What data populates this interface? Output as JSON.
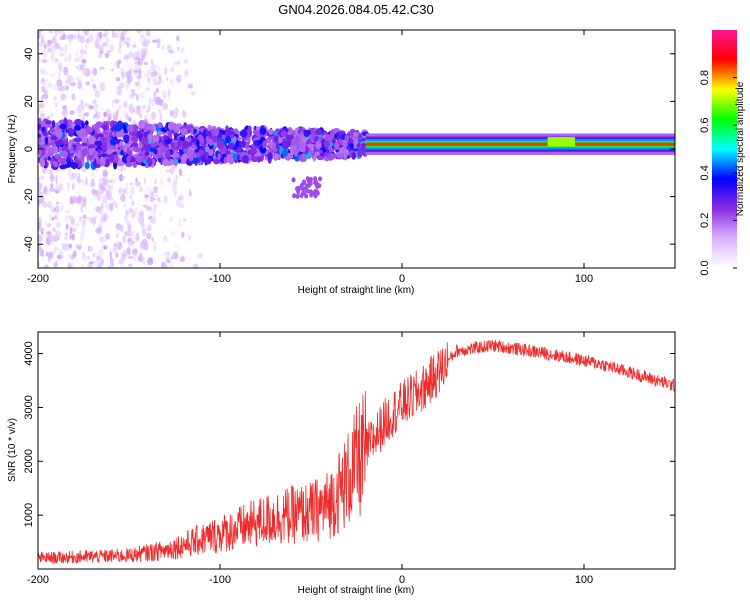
{
  "title": "GN04.2026.084.05.42.C30",
  "chart_data": [
    {
      "type": "heatmap",
      "name": "spectrogram",
      "xlabel": "Height of straight line (km)",
      "ylabel": "Frequency (Hz)",
      "xlim": [
        -200,
        150
      ],
      "ylim": [
        -50,
        50
      ],
      "xticks": [
        -200,
        -100,
        0,
        100
      ],
      "yticks": [
        -40,
        -20,
        0,
        20,
        40
      ],
      "colorbar": {
        "label": "Normalized spectral amplitude",
        "range": [
          0,
          1
        ],
        "ticks": [
          "0.0",
          "0.2",
          "0.4",
          "0.6",
          "0.8"
        ],
        "colors": [
          "#ffffff",
          "#d9b3ff",
          "#8a2be2",
          "#0000ff",
          "#00ffff",
          "#00ff00",
          "#ffff00",
          "#ff0000",
          "#ff1493"
        ]
      },
      "features": {
        "sparse_band_x": [
          -200,
          -110
        ],
        "broad_band": {
          "x": [
            -200,
            -20
          ],
          "freq_range": [
            -10,
            10
          ],
          "amplitude": 0.25
        },
        "narrow_line": {
          "x": [
            -20,
            150
          ],
          "freq": 2,
          "amplitude": 0.85
        },
        "tail_blob": {
          "x": [
            -60,
            -45
          ],
          "freq": [
            -20,
            -12
          ]
        }
      }
    },
    {
      "type": "line",
      "name": "snr",
      "xlabel": "Height of straight line (km)",
      "ylabel": "SNR (10 * v/v)",
      "xlim": [
        -200,
        150
      ],
      "ylim": [
        0,
        4400
      ],
      "xticks": [
        -200,
        -100,
        0,
        100
      ],
      "yticks": [
        1000,
        2000,
        3000,
        4000
      ],
      "color": "#ee2c2c",
      "envelope": {
        "x": [
          -200,
          -150,
          -130,
          -110,
          -90,
          -70,
          -50,
          -40,
          -30,
          -25,
          -20,
          -15,
          -10,
          -5,
          0,
          10,
          20,
          30,
          50,
          80,
          110,
          130,
          150
        ],
        "y": [
          200,
          250,
          350,
          550,
          750,
          950,
          1050,
          1200,
          1650,
          1950,
          2200,
          2450,
          2700,
          2900,
          3050,
          3300,
          3650,
          4050,
          4150,
          4000,
          3800,
          3600,
          3400
        ]
      }
    }
  ]
}
